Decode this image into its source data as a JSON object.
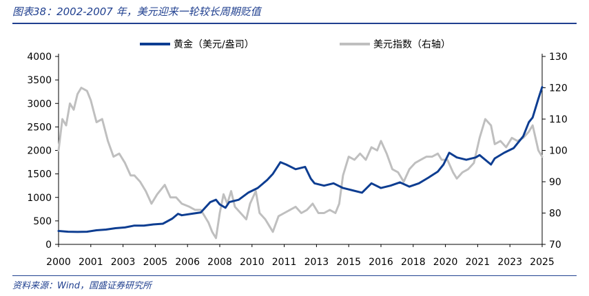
{
  "header": {
    "title": "图表38：2002-2007 年，美元迎来一轮较长周期贬值"
  },
  "footer": {
    "source": "资料来源：Wind，国盛证券研究所"
  },
  "colors": {
    "gold": "#0d3d91",
    "dxy": "#bfbfbf",
    "title": "#1f3f8f",
    "axis": "#000000"
  },
  "chart_data": {
    "type": "line",
    "title": "图表38：2002-2007 年，美元迎来一轮较长周期贬值",
    "x_ticks": [
      "2000",
      "2001",
      "2003",
      "2005",
      "2006",
      "2008",
      "2010",
      "2011",
      "2013",
      "2015",
      "2016",
      "2018",
      "2020",
      "2021",
      "2023",
      "2025"
    ],
    "xlim": [
      2000,
      2025.5
    ],
    "left_axis": {
      "label": "黄金（美元/盎司）",
      "ticks": [
        "0",
        "500",
        "1000",
        "1500",
        "2000",
        "2500",
        "3000",
        "3500",
        "4000"
      ],
      "ylim": [
        0,
        4000
      ]
    },
    "right_axis": {
      "label": "美元指数（右轴）",
      "ticks": [
        "70",
        "80",
        "90",
        "100",
        "110",
        "120",
        "130"
      ],
      "ylim": [
        70,
        130
      ]
    },
    "legend": [
      "黄金（美元/盎司）",
      "美元指数（右轴）"
    ],
    "series": [
      {
        "name": "黄金（美元/盎司）",
        "axis": "left",
        "x": [
          2000.0,
          2000.5,
          2001.0,
          2001.5,
          2002.0,
          2002.5,
          2003.0,
          2003.5,
          2004.0,
          2004.5,
          2005.0,
          2005.5,
          2006.0,
          2006.3,
          2006.5,
          2007.0,
          2007.5,
          2008.0,
          2008.3,
          2008.5,
          2008.8,
          2009.0,
          2009.5,
          2010.0,
          2010.5,
          2011.0,
          2011.3,
          2011.7,
          2012.0,
          2012.5,
          2013.0,
          2013.3,
          2013.5,
          2014.0,
          2014.5,
          2015.0,
          2015.5,
          2016.0,
          2016.5,
          2017.0,
          2017.5,
          2018.0,
          2018.5,
          2019.0,
          2019.5,
          2020.0,
          2020.3,
          2020.6,
          2021.0,
          2021.5,
          2022.0,
          2022.2,
          2022.8,
          2023.0,
          2023.5,
          2024.0,
          2024.5,
          2024.8,
          2025.0,
          2025.3,
          2025.5
        ],
        "values": [
          285,
          270,
          265,
          270,
          300,
          315,
          345,
          360,
          400,
          400,
          425,
          440,
          550,
          650,
          620,
          650,
          680,
          900,
          950,
          850,
          780,
          900,
          950,
          1100,
          1200,
          1370,
          1500,
          1750,
          1700,
          1600,
          1650,
          1400,
          1300,
          1250,
          1300,
          1200,
          1150,
          1100,
          1300,
          1200,
          1250,
          1320,
          1230,
          1300,
          1420,
          1550,
          1700,
          1950,
          1850,
          1800,
          1850,
          1900,
          1700,
          1830,
          1950,
          2050,
          2300,
          2600,
          2700,
          3100,
          3350
        ]
      },
      {
        "name": "美元指数（右轴）",
        "axis": "right",
        "x": [
          2000.0,
          2000.2,
          2000.4,
          2000.6,
          2000.8,
          2001.0,
          2001.2,
          2001.5,
          2001.7,
          2002.0,
          2002.3,
          2002.6,
          2002.9,
          2003.2,
          2003.5,
          2003.8,
          2004.0,
          2004.3,
          2004.6,
          2004.9,
          2005.2,
          2005.6,
          2005.9,
          2006.2,
          2006.5,
          2006.9,
          2007.2,
          2007.5,
          2007.9,
          2008.1,
          2008.3,
          2008.5,
          2008.7,
          2008.9,
          2009.1,
          2009.3,
          2009.6,
          2009.9,
          2010.1,
          2010.4,
          2010.6,
          2010.9,
          2011.1,
          2011.3,
          2011.6,
          2011.9,
          2012.2,
          2012.5,
          2012.8,
          2013.1,
          2013.4,
          2013.7,
          2014.0,
          2014.3,
          2014.6,
          2014.8,
          2015.0,
          2015.3,
          2015.6,
          2015.9,
          2016.2,
          2016.5,
          2016.8,
          2017.0,
          2017.3,
          2017.6,
          2017.9,
          2018.2,
          2018.5,
          2018.8,
          2019.1,
          2019.4,
          2019.7,
          2020.0,
          2020.2,
          2020.5,
          2020.8,
          2021.0,
          2021.3,
          2021.6,
          2021.9,
          2022.2,
          2022.5,
          2022.8,
          2023.0,
          2023.3,
          2023.6,
          2023.9,
          2024.2,
          2024.5,
          2024.8,
          2025.0,
          2025.3,
          2025.5
        ],
        "values": [
          100,
          110,
          108,
          115,
          113,
          118,
          120,
          119,
          116,
          109,
          110,
          103,
          98,
          99,
          96,
          92,
          92,
          90,
          87,
          83,
          86,
          89,
          85,
          85,
          83,
          82,
          81,
          81,
          77,
          74,
          72,
          80,
          86,
          83,
          87,
          82,
          80,
          78,
          83,
          87,
          80,
          78,
          76,
          74,
          79,
          80,
          81,
          82,
          80,
          81,
          83,
          80,
          80,
          81,
          80,
          83,
          92,
          98,
          97,
          99,
          97,
          101,
          100,
          103,
          99,
          94,
          93,
          90,
          94,
          96,
          97,
          98,
          98,
          99,
          97,
          97,
          93,
          91,
          93,
          94,
          96,
          104,
          110,
          108,
          102,
          103,
          101,
          104,
          103,
          104,
          106,
          108,
          100,
          98
        ]
      }
    ]
  }
}
